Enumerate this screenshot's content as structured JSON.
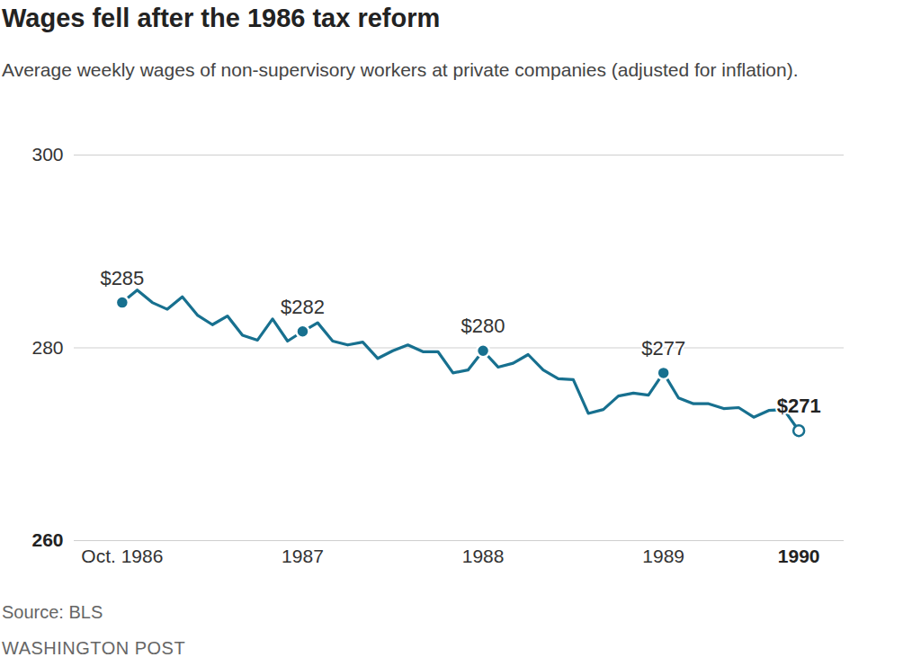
{
  "chart_data": {
    "type": "line",
    "title": "Wages fell after the 1986 tax reform",
    "subtitle": "Average weekly wages of non-supervisory workers at private companies (adjusted for inflation).",
    "source": "Source: BLS",
    "credit": "WASHINGTON POST",
    "categories": [
      "Oct. 1986",
      null,
      null,
      null,
      null,
      null,
      null,
      null,
      null,
      null,
      null,
      null,
      "1987",
      null,
      null,
      null,
      null,
      null,
      null,
      null,
      null,
      null,
      null,
      null,
      "1988",
      null,
      null,
      null,
      null,
      null,
      null,
      null,
      null,
      null,
      null,
      null,
      "1989",
      null,
      null,
      null,
      null,
      null,
      null,
      null,
      null,
      "1990"
    ],
    "values": [
      284.7,
      286.0,
      284.7,
      284.0,
      285.3,
      283.4,
      282.4,
      283.3,
      281.3,
      280.8,
      283.0,
      280.7,
      281.7,
      282.6,
      280.7,
      280.3,
      280.6,
      278.9,
      279.7,
      280.3,
      279.6,
      279.6,
      277.4,
      277.7,
      279.7,
      278.0,
      278.4,
      279.3,
      277.7,
      276.8,
      276.7,
      273.2,
      273.6,
      275.0,
      275.3,
      275.1,
      277.4,
      274.8,
      274.2,
      274.2,
      273.7,
      273.8,
      272.8,
      273.5,
      273.6,
      271.4
    ],
    "value_labels": [
      "$285",
      null,
      null,
      null,
      null,
      null,
      null,
      null,
      null,
      null,
      null,
      null,
      "$282",
      null,
      null,
      null,
      null,
      null,
      null,
      null,
      null,
      null,
      null,
      null,
      "$280",
      null,
      null,
      null,
      null,
      null,
      null,
      null,
      null,
      null,
      null,
      null,
      "$277",
      null,
      null,
      null,
      null,
      null,
      null,
      null,
      null,
      "$271"
    ],
    "data_labels": true,
    "color": "#17708f",
    "ylim": [
      260,
      300
    ],
    "yticks": [
      260,
      280,
      300
    ],
    "grid": true
  }
}
